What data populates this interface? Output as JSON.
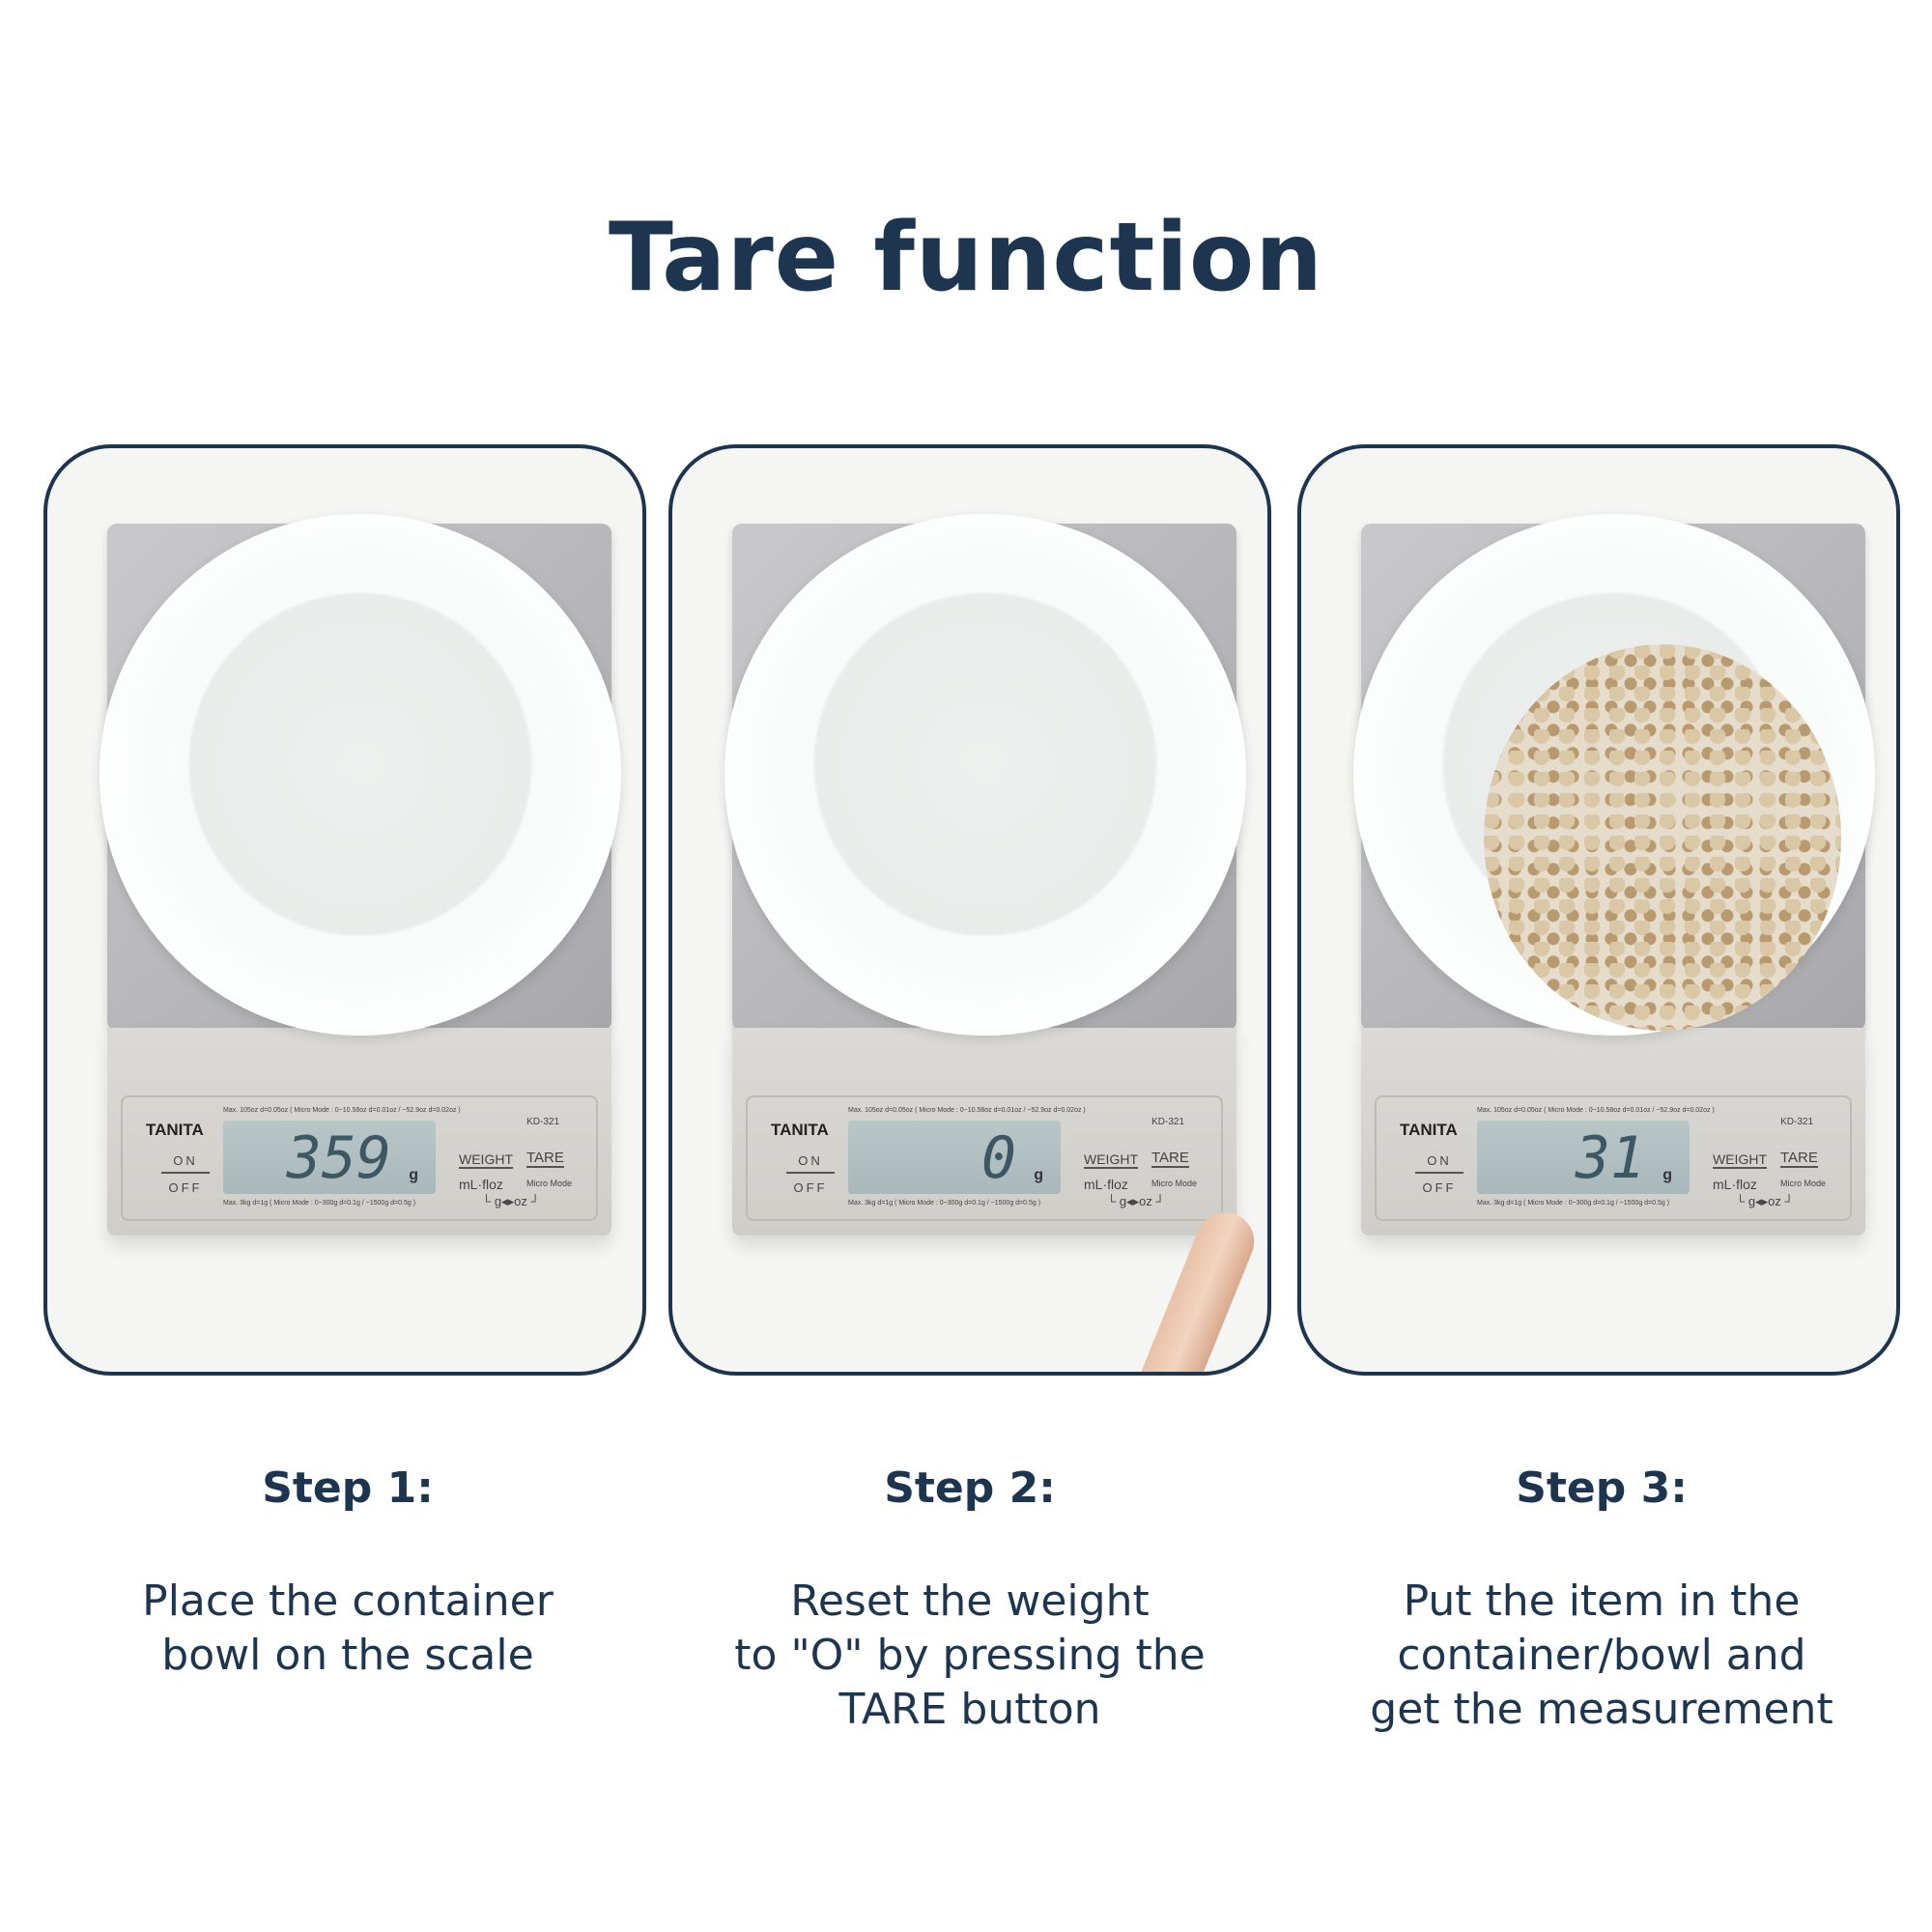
{
  "title": "Tare function",
  "colors": {
    "accent": "#1e3550"
  },
  "scale": {
    "brand": "TANITA",
    "model": "KD-321",
    "on": "ON",
    "off": "OFF",
    "weight": "WEIGHT",
    "tare": "TARE",
    "ml_floz": "mL·floz",
    "micro_mode": "Micro Mode",
    "g_oz": "└ g◂▸oz ┘",
    "unit": "g",
    "fine_top": "Max. 105oz d=0.05oz ( Micro Mode : 0~10.58oz d=0.01oz / ~52.9oz d=0.02oz )",
    "fine_bottom": "Max. 3kg d=1g ( Micro Mode : 0~300g d=0.1g / ~1500g d=0.5g )"
  },
  "steps": [
    {
      "label": "Step 1:",
      "reading": "359",
      "lines": [
        "Place the container",
        "bowl on the scale"
      ]
    },
    {
      "label": "Step 2:",
      "reading": "0",
      "lines": [
        "Reset the weight",
        "to \"O\" by pressing the",
        "TARE button"
      ]
    },
    {
      "label": "Step 3:",
      "reading": "31",
      "lines": [
        "Put the item in the",
        "container/bowl and",
        "get the measurement"
      ]
    }
  ]
}
